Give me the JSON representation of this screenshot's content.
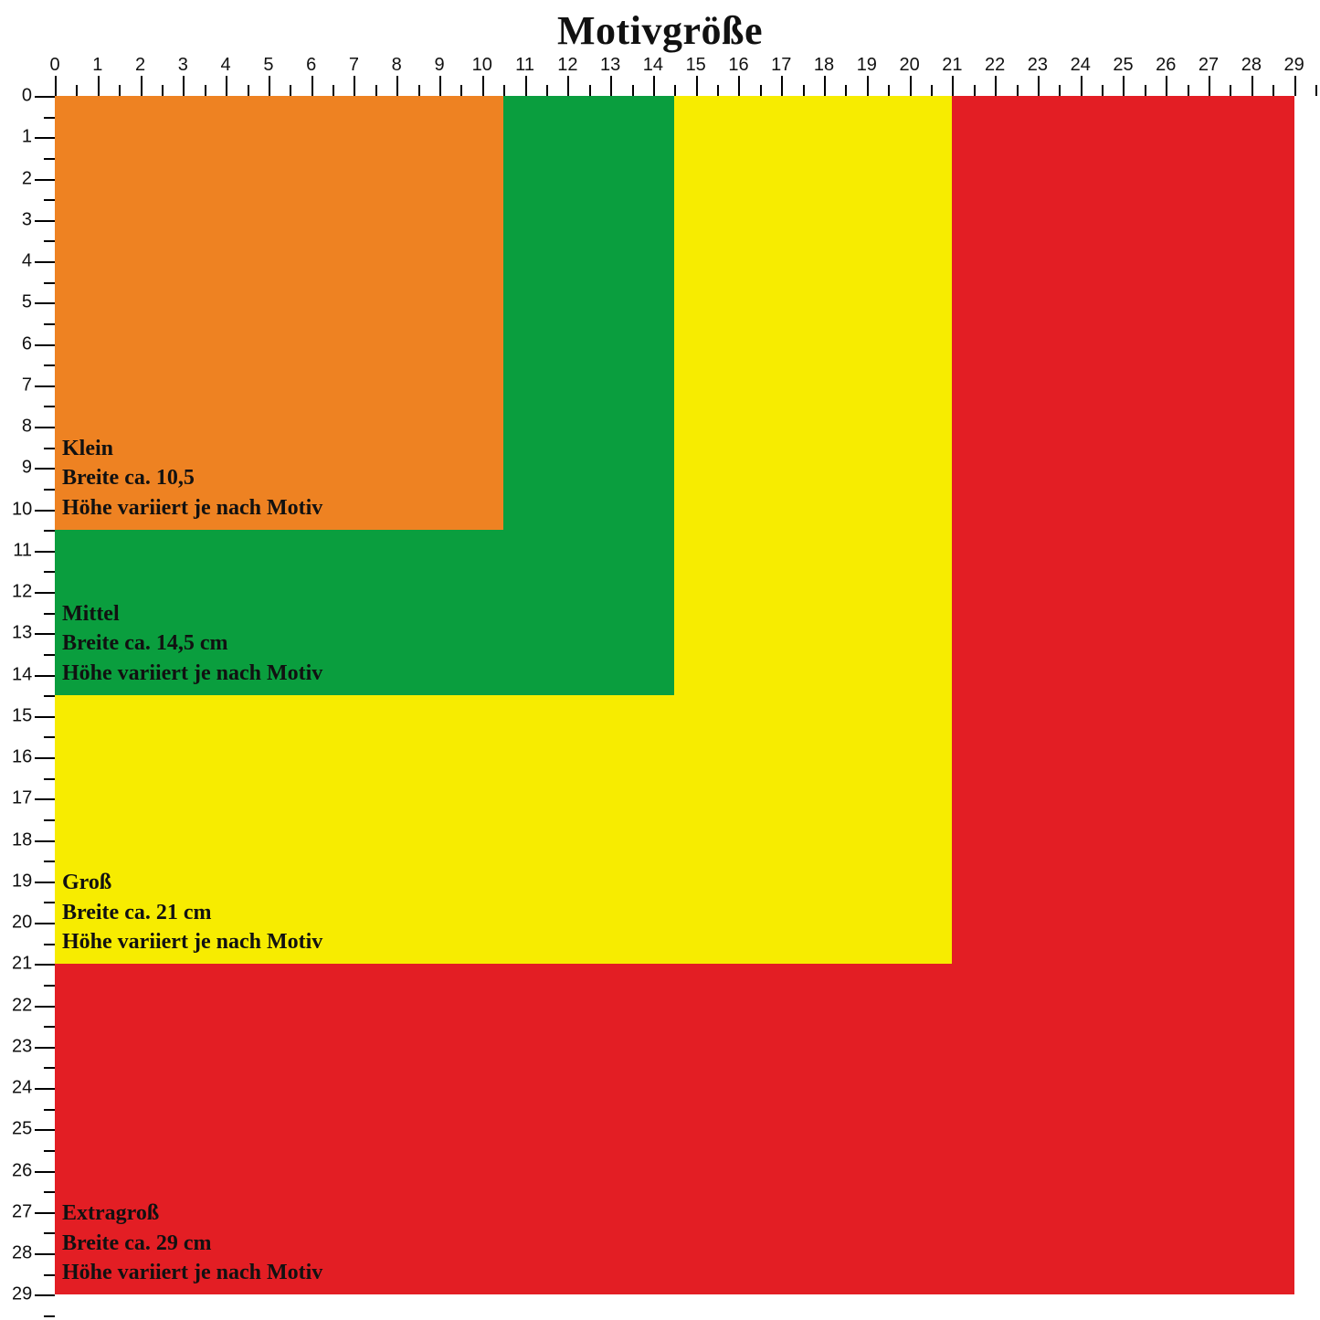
{
  "title": "Motivgröße",
  "title_fontsize": 44,
  "background_color": "#ffffff",
  "text_color": "#111111",
  "ruler": {
    "max": 29.5,
    "major_step": 1,
    "minor_step": 0.5,
    "label_fontsize": 20,
    "tick_color": "#000000"
  },
  "label_fontsize": 24,
  "sizes": [
    {
      "key": "extragross",
      "name": "Extragroß",
      "width_label": "Breite ca. 29 cm",
      "height_label": "Höhe variiert je nach Motiv",
      "width_cm": 29,
      "height_cm": 29,
      "color": "#e31e24"
    },
    {
      "key": "gross",
      "name": "Groß",
      "width_label": "Breite ca. 21 cm",
      "height_label": "Höhe variiert je nach Motiv",
      "width_cm": 21,
      "height_cm": 21,
      "color": "#f7ec00"
    },
    {
      "key": "mittel",
      "name": "Mittel",
      "width_label": "Breite ca. 14,5 cm",
      "height_label": "Höhe variiert je nach Motiv",
      "width_cm": 14.5,
      "height_cm": 14.5,
      "color": "#0a9e3e"
    },
    {
      "key": "klein",
      "name": "Klein",
      "width_label": "Breite ca. 10,5",
      "height_label": "Höhe variiert je nach Motiv",
      "width_cm": 10.5,
      "height_cm": 10.5,
      "color": "#ee8222"
    }
  ]
}
